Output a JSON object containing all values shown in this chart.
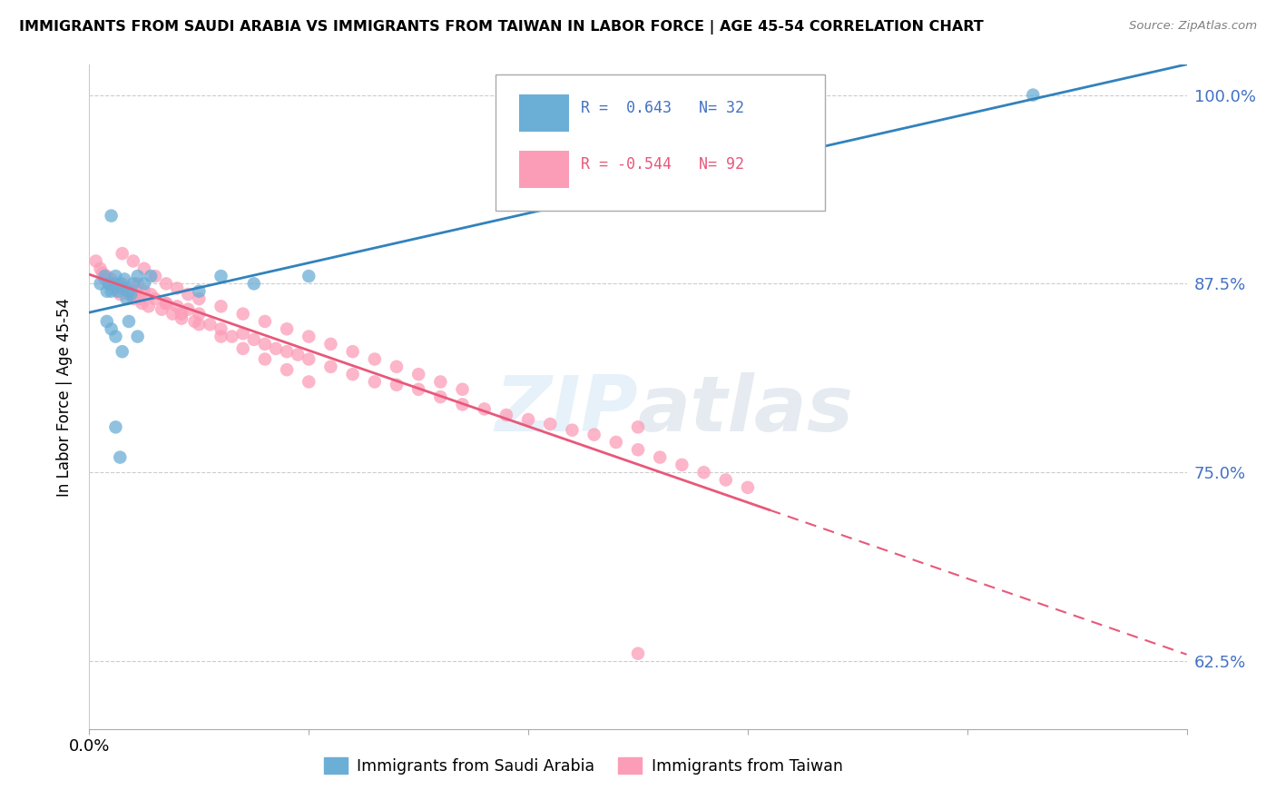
{
  "title": "IMMIGRANTS FROM SAUDI ARABIA VS IMMIGRANTS FROM TAIWAN IN LABOR FORCE | AGE 45-54 CORRELATION CHART",
  "source": "Source: ZipAtlas.com",
  "ylabel": "In Labor Force | Age 45-54",
  "xmin": 0.0,
  "xmax": 0.5,
  "ymin": 0.58,
  "ymax": 1.02,
  "yticks": [
    0.625,
    0.75,
    0.875,
    1.0
  ],
  "ytick_labels": [
    "62.5%",
    "75.0%",
    "87.5%",
    "100.0%"
  ],
  "xtick_vals": [
    0.0,
    0.1,
    0.2,
    0.3,
    0.4,
    0.5
  ],
  "color_saudi": "#6baed6",
  "color_taiwan": "#fc9db8",
  "color_line_saudi": "#3182bd",
  "color_line_taiwan": "#e8587a",
  "legend_r_saudi": "0.643",
  "legend_n_saudi": "32",
  "legend_r_taiwan": "-0.544",
  "legend_n_taiwan": "92",
  "legend_label_saudi": "Immigrants from Saudi Arabia",
  "legend_label_taiwan": "Immigrants from Taiwan",
  "saudi_x": [
    0.005,
    0.007,
    0.008,
    0.009,
    0.01,
    0.011,
    0.012,
    0.013,
    0.014,
    0.015,
    0.016,
    0.017,
    0.018,
    0.019,
    0.02,
    0.022,
    0.025,
    0.028,
    0.008,
    0.01,
    0.012,
    0.015,
    0.018,
    0.022,
    0.01,
    0.012,
    0.014,
    0.05,
    0.06,
    0.075,
    0.1,
    0.43
  ],
  "saudi_y": [
    0.875,
    0.88,
    0.87,
    0.875,
    0.87,
    0.875,
    0.88,
    0.87,
    0.875,
    0.872,
    0.878,
    0.865,
    0.87,
    0.868,
    0.875,
    0.88,
    0.875,
    0.88,
    0.85,
    0.845,
    0.84,
    0.83,
    0.85,
    0.84,
    0.92,
    0.78,
    0.76,
    0.87,
    0.88,
    0.875,
    0.88,
    1.0
  ],
  "taiwan_x": [
    0.003,
    0.005,
    0.006,
    0.007,
    0.008,
    0.009,
    0.01,
    0.011,
    0.012,
    0.013,
    0.014,
    0.015,
    0.016,
    0.017,
    0.018,
    0.019,
    0.02,
    0.021,
    0.022,
    0.023,
    0.024,
    0.025,
    0.027,
    0.03,
    0.033,
    0.035,
    0.038,
    0.04,
    0.042,
    0.045,
    0.048,
    0.05,
    0.055,
    0.06,
    0.065,
    0.07,
    0.075,
    0.08,
    0.085,
    0.09,
    0.095,
    0.1,
    0.11,
    0.12,
    0.13,
    0.14,
    0.15,
    0.16,
    0.17,
    0.18,
    0.19,
    0.2,
    0.21,
    0.22,
    0.23,
    0.24,
    0.25,
    0.26,
    0.27,
    0.28,
    0.29,
    0.3,
    0.015,
    0.02,
    0.025,
    0.03,
    0.035,
    0.04,
    0.045,
    0.05,
    0.06,
    0.07,
    0.08,
    0.09,
    0.1,
    0.11,
    0.12,
    0.13,
    0.14,
    0.15,
    0.16,
    0.17,
    0.022,
    0.028,
    0.035,
    0.042,
    0.05,
    0.06,
    0.07,
    0.08,
    0.09,
    0.1,
    0.25,
    0.25
  ],
  "taiwan_y": [
    0.89,
    0.885,
    0.882,
    0.878,
    0.88,
    0.875,
    0.878,
    0.872,
    0.875,
    0.87,
    0.868,
    0.875,
    0.872,
    0.87,
    0.868,
    0.872,
    0.865,
    0.87,
    0.868,
    0.865,
    0.862,
    0.87,
    0.86,
    0.865,
    0.858,
    0.862,
    0.855,
    0.86,
    0.852,
    0.858,
    0.85,
    0.855,
    0.848,
    0.845,
    0.84,
    0.842,
    0.838,
    0.835,
    0.832,
    0.83,
    0.828,
    0.825,
    0.82,
    0.815,
    0.81,
    0.808,
    0.805,
    0.8,
    0.795,
    0.792,
    0.788,
    0.785,
    0.782,
    0.778,
    0.775,
    0.77,
    0.765,
    0.76,
    0.755,
    0.75,
    0.745,
    0.74,
    0.895,
    0.89,
    0.885,
    0.88,
    0.875,
    0.872,
    0.868,
    0.865,
    0.86,
    0.855,
    0.85,
    0.845,
    0.84,
    0.835,
    0.83,
    0.825,
    0.82,
    0.815,
    0.81,
    0.805,
    0.875,
    0.868,
    0.862,
    0.855,
    0.848,
    0.84,
    0.832,
    0.825,
    0.818,
    0.81,
    0.78,
    0.63
  ]
}
